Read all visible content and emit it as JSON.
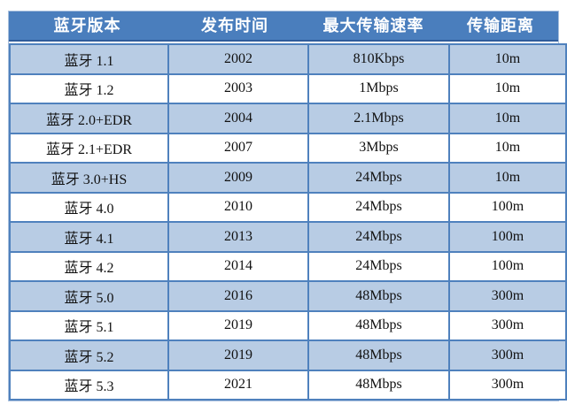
{
  "chart_data": {
    "type": "table",
    "columns": [
      "蓝牙版本",
      "发布时间",
      "最大传输速率",
      "传输距离"
    ],
    "rows": [
      [
        "蓝牙 1.1",
        "2002",
        "810Kbps",
        "10m"
      ],
      [
        "蓝牙 1.2",
        "2003",
        "1Mbps",
        "10m"
      ],
      [
        "蓝牙 2.0+EDR",
        "2004",
        "2.1Mbps",
        "10m"
      ],
      [
        "蓝牙 2.1+EDR",
        "2007",
        "3Mbps",
        "10m"
      ],
      [
        "蓝牙 3.0+HS",
        "2009",
        "24Mbps",
        "10m"
      ],
      [
        "蓝牙 4.0",
        "2010",
        "24Mbps",
        "100m"
      ],
      [
        "蓝牙 4.1",
        "2013",
        "24Mbps",
        "100m"
      ],
      [
        "蓝牙 4.2",
        "2014",
        "24Mbps",
        "100m"
      ],
      [
        "蓝牙 5.0",
        "2016",
        "48Mbps",
        "300m"
      ],
      [
        "蓝牙 5.1",
        "2019",
        "48Mbps",
        "300m"
      ],
      [
        "蓝牙 5.2",
        "2019",
        "48Mbps",
        "300m"
      ],
      [
        "蓝牙 5.3",
        "2021",
        "48Mbps",
        "300m"
      ]
    ],
    "banding": "odd rows light blue, even rows white, starting light blue",
    "legend_position": "none",
    "grid": true
  },
  "colors": {
    "header_bg": "#4a7ebd",
    "header_underline": "#2f5c9a",
    "header_text": "#ffffff",
    "band_row_bg": "#b8cce4",
    "plain_row_bg": "#ffffff",
    "cell_border": "#4f81bd",
    "body_text": "#111111",
    "page_bg": "#ffffff"
  }
}
